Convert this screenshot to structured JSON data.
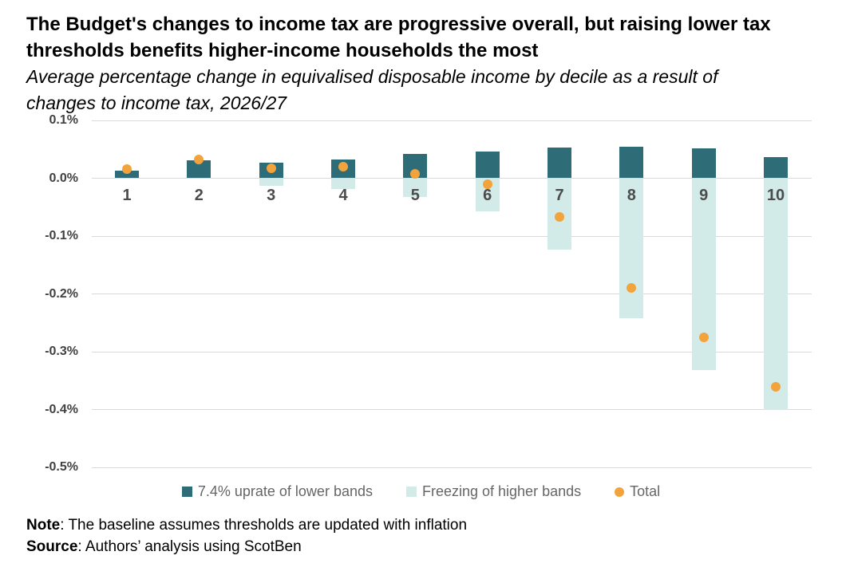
{
  "header": {
    "title_line1": "The Budget's changes to income tax are progressive overall, but raising lower tax",
    "title_line2": "thresholds benefits higher-income households the most",
    "subtitle_line1": "Average percentage change in equivalised disposable income by decile as a result of",
    "subtitle_line2": "changes to income tax, 2026/27"
  },
  "chart_data": {
    "type": "bar",
    "title": "The Budget's changes to income tax are progressive overall, but raising lower tax thresholds benefits higher-income households the most",
    "subtitle": "Average percentage change in equivalised disposable income by decile as a result of changes to income tax, 2026/27",
    "categories": [
      "1",
      "2",
      "3",
      "4",
      "5",
      "6",
      "7",
      "8",
      "9",
      "10"
    ],
    "unit": "%",
    "ylim": [
      -0.5,
      0.1
    ],
    "grid": true,
    "legend_position": "bottom",
    "ytick_labels": [
      "0.1%",
      "0.0%",
      "-0.1%",
      "-0.2%",
      "-0.3%",
      "-0.4%",
      "-0.5%"
    ],
    "ytick_values": [
      0.1,
      0.0,
      -0.1,
      -0.2,
      -0.3,
      -0.4,
      -0.5
    ],
    "series": [
      {
        "name": "7.4% uprate of lower bands",
        "style": "bar",
        "color": "#2E6C78",
        "values": [
          0.013,
          0.031,
          0.027,
          0.033,
          0.042,
          0.046,
          0.053,
          0.054,
          0.052,
          0.037
        ]
      },
      {
        "name": "Freezing of higher bands",
        "style": "bar",
        "color": "#D2EAE8",
        "values": [
          0.0,
          0.0,
          -0.013,
          -0.018,
          -0.033,
          -0.057,
          -0.123,
          -0.242,
          -0.332,
          -0.4
        ]
      },
      {
        "name": "Total",
        "style": "point",
        "color": "#F2A33C",
        "values": [
          0.016,
          0.032,
          0.017,
          0.02,
          0.008,
          -0.01,
          -0.067,
          -0.19,
          -0.275,
          -0.36
        ]
      }
    ]
  },
  "footer": {
    "note_label": "Note",
    "note_text": ": The baseline assumes thresholds are updated with inflation",
    "source_label": "Source",
    "source_text": ": Authors’ analysis using ScotBen"
  },
  "colors": {
    "uprate_bar": "#2E6C78",
    "freeze_bar": "#D2EAE8",
    "total_dot": "#F2A33C",
    "gridline": "#D9D9D9",
    "axis_text": "#414141",
    "decile_text": "#4C4C4C",
    "legend_text": "#666666"
  }
}
